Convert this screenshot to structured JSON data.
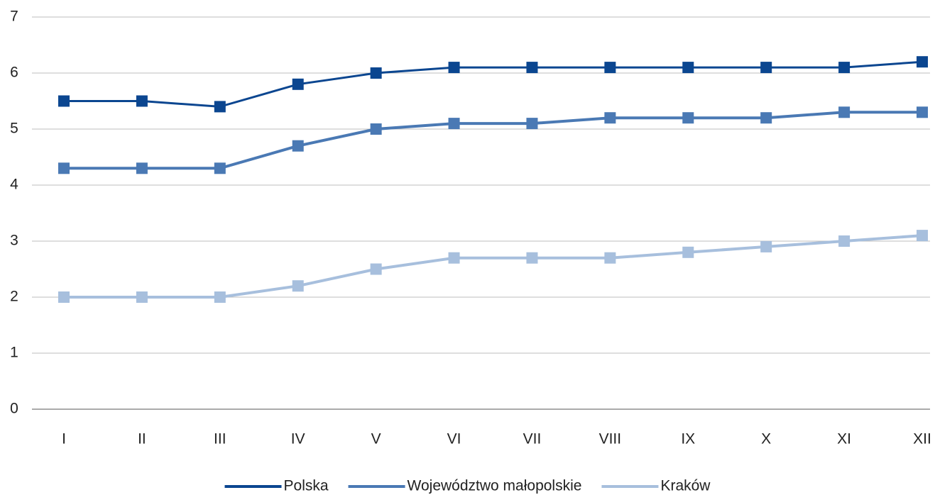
{
  "chart_data": {
    "type": "line",
    "categories": [
      "I",
      "II",
      "III",
      "IV",
      "V",
      "VI",
      "VII",
      "VIII",
      "IX",
      "X",
      "XI",
      "XII"
    ],
    "series": [
      {
        "name": "Polska",
        "color": "#0b4690",
        "values": [
          5.5,
          5.5,
          5.4,
          5.8,
          6.0,
          6.1,
          6.1,
          6.1,
          6.1,
          6.1,
          6.1,
          6.2
        ]
      },
      {
        "name": "Województwo małopolskie",
        "color": "#4a79b4",
        "values": [
          4.3,
          4.3,
          4.3,
          4.7,
          5.0,
          5.1,
          5.1,
          5.2,
          5.2,
          5.2,
          5.3,
          5.3
        ]
      },
      {
        "name": "Kraków",
        "color": "#a7bfdd",
        "values": [
          2.0,
          2.0,
          2.0,
          2.2,
          2.5,
          2.7,
          2.7,
          2.7,
          2.8,
          2.9,
          3.0,
          3.1
        ]
      }
    ],
    "ylim": [
      0,
      7
    ],
    "yticks": [
      0,
      1,
      2,
      3,
      4,
      5,
      6,
      7
    ],
    "grid": true,
    "legend": "bottom"
  }
}
